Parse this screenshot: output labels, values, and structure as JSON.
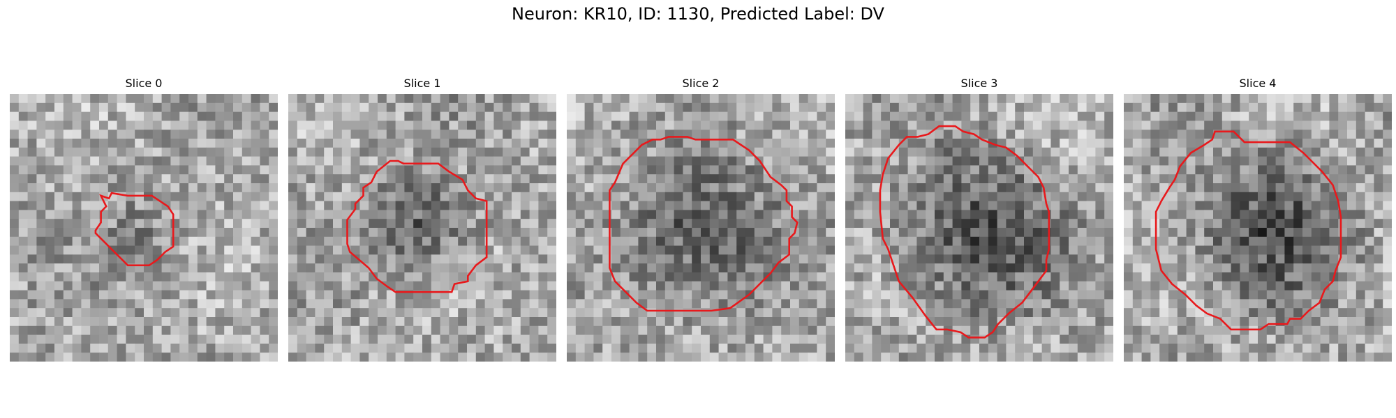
{
  "figure": {
    "title": "Neuron: KR10, ID: 1130, Predicted Label: DV"
  },
  "contour_color": "#e8191c",
  "panels": [
    {
      "title": "Slice 0",
      "dark_blob": {
        "center": [
          0.5,
          0.52
        ],
        "radius": 0.2,
        "strength": 0.15
      },
      "contour": [
        [
          0.34,
          0.38
        ],
        [
          0.37,
          0.39
        ],
        [
          0.38,
          0.37
        ],
        [
          0.44,
          0.38
        ],
        [
          0.53,
          0.38
        ],
        [
          0.56,
          0.4
        ],
        [
          0.59,
          0.42
        ],
        [
          0.61,
          0.45
        ],
        [
          0.61,
          0.57
        ],
        [
          0.58,
          0.59
        ],
        [
          0.55,
          0.62
        ],
        [
          0.52,
          0.64
        ],
        [
          0.48,
          0.64
        ],
        [
          0.44,
          0.64
        ],
        [
          0.42,
          0.62
        ],
        [
          0.4,
          0.6
        ],
        [
          0.37,
          0.57
        ],
        [
          0.32,
          0.52
        ],
        [
          0.32,
          0.51
        ],
        [
          0.34,
          0.48
        ],
        [
          0.34,
          0.44
        ],
        [
          0.36,
          0.42
        ]
      ]
    },
    {
      "title": "Slice 1",
      "dark_blob": {
        "center": [
          0.5,
          0.5
        ],
        "radius": 0.28,
        "strength": 0.32
      },
      "contour": [
        [
          0.31,
          0.33
        ],
        [
          0.33,
          0.29
        ],
        [
          0.38,
          0.25
        ],
        [
          0.41,
          0.25
        ],
        [
          0.43,
          0.26
        ],
        [
          0.56,
          0.26
        ],
        [
          0.6,
          0.29
        ],
        [
          0.65,
          0.32
        ],
        [
          0.67,
          0.36
        ],
        [
          0.7,
          0.39
        ],
        [
          0.74,
          0.4
        ],
        [
          0.74,
          0.61
        ],
        [
          0.7,
          0.64
        ],
        [
          0.67,
          0.68
        ],
        [
          0.67,
          0.7
        ],
        [
          0.62,
          0.71
        ],
        [
          0.61,
          0.74
        ],
        [
          0.4,
          0.74
        ],
        [
          0.37,
          0.72
        ],
        [
          0.33,
          0.69
        ],
        [
          0.3,
          0.65
        ],
        [
          0.23,
          0.59
        ],
        [
          0.22,
          0.56
        ],
        [
          0.22,
          0.47
        ],
        [
          0.25,
          0.43
        ],
        [
          0.25,
          0.41
        ],
        [
          0.28,
          0.38
        ],
        [
          0.28,
          0.35
        ]
      ]
    },
    {
      "title": "Slice 2",
      "dark_blob": {
        "center": [
          0.5,
          0.52
        ],
        "radius": 0.4,
        "strength": 0.38
      },
      "contour": [
        [
          0.21,
          0.26
        ],
        [
          0.25,
          0.22
        ],
        [
          0.28,
          0.19
        ],
        [
          0.32,
          0.17
        ],
        [
          0.35,
          0.17
        ],
        [
          0.38,
          0.16
        ],
        [
          0.45,
          0.16
        ],
        [
          0.48,
          0.17
        ],
        [
          0.62,
          0.17
        ],
        [
          0.65,
          0.19
        ],
        [
          0.68,
          0.21
        ],
        [
          0.72,
          0.25
        ],
        [
          0.76,
          0.31
        ],
        [
          0.8,
          0.34
        ],
        [
          0.82,
          0.36
        ],
        [
          0.82,
          0.4
        ],
        [
          0.84,
          0.42
        ],
        [
          0.84,
          0.46
        ],
        [
          0.86,
          0.48
        ],
        [
          0.85,
          0.52
        ],
        [
          0.83,
          0.54
        ],
        [
          0.83,
          0.6
        ],
        [
          0.79,
          0.63
        ],
        [
          0.76,
          0.67
        ],
        [
          0.72,
          0.71
        ],
        [
          0.68,
          0.75
        ],
        [
          0.61,
          0.8
        ],
        [
          0.54,
          0.81
        ],
        [
          0.3,
          0.81
        ],
        [
          0.26,
          0.78
        ],
        [
          0.22,
          0.74
        ],
        [
          0.18,
          0.7
        ],
        [
          0.16,
          0.65
        ],
        [
          0.16,
          0.36
        ],
        [
          0.18,
          0.33
        ]
      ]
    },
    {
      "title": "Slice 3",
      "dark_blob": {
        "center": [
          0.5,
          0.52
        ],
        "radius": 0.42,
        "strength": 0.4
      },
      "contour": [
        [
          0.2,
          0.19
        ],
        [
          0.23,
          0.16
        ],
        [
          0.27,
          0.16
        ],
        [
          0.31,
          0.15
        ],
        [
          0.35,
          0.12
        ],
        [
          0.41,
          0.12
        ],
        [
          0.44,
          0.14
        ],
        [
          0.48,
          0.15
        ],
        [
          0.51,
          0.17
        ],
        [
          0.56,
          0.19
        ],
        [
          0.6,
          0.2
        ],
        [
          0.64,
          0.23
        ],
        [
          0.68,
          0.27
        ],
        [
          0.72,
          0.31
        ],
        [
          0.74,
          0.35
        ],
        [
          0.75,
          0.41
        ],
        [
          0.76,
          0.44
        ],
        [
          0.76,
          0.58
        ],
        [
          0.75,
          0.62
        ],
        [
          0.75,
          0.66
        ],
        [
          0.72,
          0.7
        ],
        [
          0.69,
          0.74
        ],
        [
          0.66,
          0.78
        ],
        [
          0.61,
          0.82
        ],
        [
          0.57,
          0.86
        ],
        [
          0.55,
          0.89
        ],
        [
          0.52,
          0.91
        ],
        [
          0.46,
          0.91
        ],
        [
          0.43,
          0.89
        ],
        [
          0.38,
          0.88
        ],
        [
          0.34,
          0.88
        ],
        [
          0.3,
          0.83
        ],
        [
          0.25,
          0.76
        ],
        [
          0.2,
          0.7
        ],
        [
          0.18,
          0.64
        ],
        [
          0.16,
          0.58
        ],
        [
          0.14,
          0.54
        ],
        [
          0.13,
          0.44
        ],
        [
          0.13,
          0.36
        ],
        [
          0.14,
          0.3
        ],
        [
          0.16,
          0.24
        ]
      ]
    },
    {
      "title": "Slice 4",
      "dark_blob": {
        "center": [
          0.55,
          0.5
        ],
        "radius": 0.4,
        "strength": 0.36
      },
      "contour": [
        [
          0.3,
          0.19
        ],
        [
          0.33,
          0.17
        ],
        [
          0.34,
          0.14
        ],
        [
          0.41,
          0.14
        ],
        [
          0.45,
          0.18
        ],
        [
          0.62,
          0.18
        ],
        [
          0.67,
          0.22
        ],
        [
          0.7,
          0.25
        ],
        [
          0.74,
          0.29
        ],
        [
          0.78,
          0.34
        ],
        [
          0.8,
          0.4
        ],
        [
          0.81,
          0.46
        ],
        [
          0.81,
          0.61
        ],
        [
          0.79,
          0.66
        ],
        [
          0.78,
          0.7
        ],
        [
          0.75,
          0.73
        ],
        [
          0.73,
          0.78
        ],
        [
          0.69,
          0.81
        ],
        [
          0.66,
          0.84
        ],
        [
          0.62,
          0.84
        ],
        [
          0.61,
          0.86
        ],
        [
          0.54,
          0.86
        ],
        [
          0.51,
          0.88
        ],
        [
          0.4,
          0.88
        ],
        [
          0.36,
          0.84
        ],
        [
          0.31,
          0.82
        ],
        [
          0.27,
          0.79
        ],
        [
          0.23,
          0.75
        ],
        [
          0.18,
          0.71
        ],
        [
          0.14,
          0.66
        ],
        [
          0.12,
          0.58
        ],
        [
          0.12,
          0.44
        ],
        [
          0.14,
          0.4
        ],
        [
          0.17,
          0.35
        ],
        [
          0.19,
          0.32
        ],
        [
          0.21,
          0.27
        ],
        [
          0.25,
          0.22
        ]
      ]
    }
  ]
}
